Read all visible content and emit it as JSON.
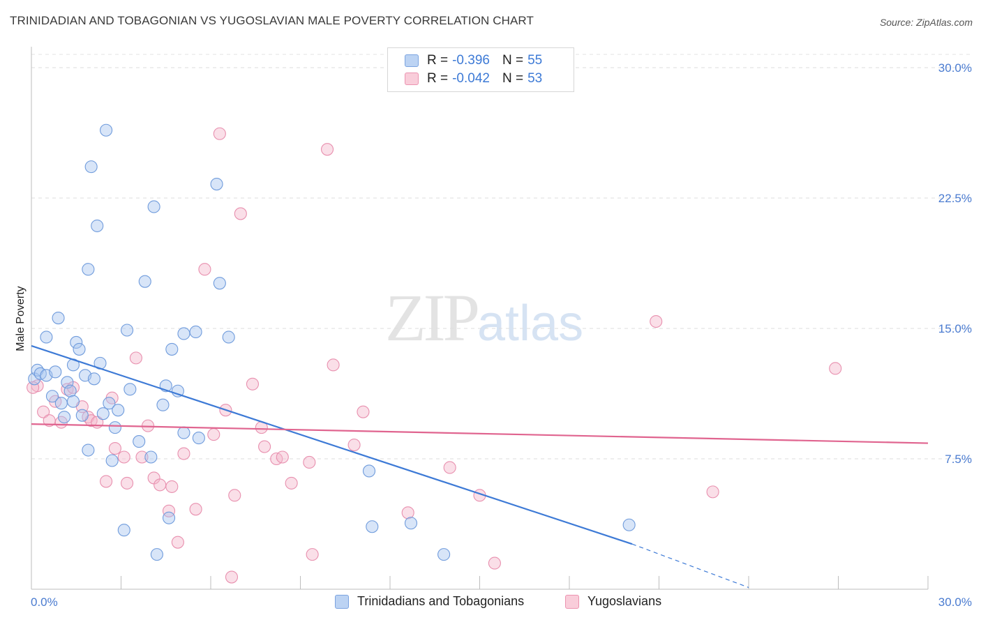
{
  "header": {
    "title": "TRINIDADIAN AND TOBAGONIAN VS YUGOSLAVIAN MALE POVERTY CORRELATION CHART",
    "source": "Source: ZipAtlas.com"
  },
  "watermark": {
    "zip": "ZIP",
    "atlas": "atlas"
  },
  "legend": {
    "rows": [
      {
        "r_label": "R =",
        "r_value": "-0.396",
        "n_label": "N =",
        "n_value": "55",
        "color": "#a8c6ef"
      },
      {
        "r_label": "R =",
        "r_value": "-0.042",
        "n_label": "N =",
        "n_value": "53",
        "color": "#f5b8cc"
      }
    ]
  },
  "bottom_legend": [
    {
      "label": "Trinidadians and Tobagonians",
      "color": "#a8c6ef"
    },
    {
      "label": "Yugoslavians",
      "color": "#f5b8cc"
    }
  ],
  "chart_data": {
    "type": "scatter",
    "title": "TRINIDADIAN AND TOBAGONIAN VS YUGOSLAVIAN MALE POVERTY CORRELATION CHART",
    "xlabel": "",
    "ylabel": "Male Poverty",
    "xlim": [
      0,
      30
    ],
    "ylim": [
      0,
      30
    ],
    "x_tick_labels": [
      "0.0%",
      "30.0%"
    ],
    "y_ticks": [
      7.5,
      15.0,
      22.5,
      30.0
    ],
    "y_tick_labels": [
      "7.5%",
      "15.0%",
      "22.5%",
      "30.0%"
    ],
    "grid": true,
    "colors": {
      "blue": "#3d7ad6",
      "pink": "#e0648f",
      "blue_fill": "#a8c6ef",
      "pink_fill": "#f5b8cc"
    },
    "series": [
      {
        "name": "Trinidadians and Tobagonians",
        "color": "#3d7ad6",
        "trend": {
          "x": [
            0.0,
            20.1
          ],
          "y": [
            14.0,
            2.6
          ],
          "dashed_to": [
            24.0,
            0.1
          ]
        },
        "points": [
          [
            0.1,
            12.1
          ],
          [
            0.2,
            12.6
          ],
          [
            0.3,
            12.4
          ],
          [
            0.5,
            14.5
          ],
          [
            0.5,
            12.3
          ],
          [
            0.7,
            11.1
          ],
          [
            0.8,
            12.5
          ],
          [
            0.9,
            15.6
          ],
          [
            1.0,
            10.7
          ],
          [
            1.1,
            9.9
          ],
          [
            1.2,
            11.9
          ],
          [
            1.3,
            11.4
          ],
          [
            1.4,
            10.8
          ],
          [
            1.4,
            12.9
          ],
          [
            1.5,
            14.2
          ],
          [
            1.6,
            13.8
          ],
          [
            1.7,
            10.0
          ],
          [
            1.8,
            12.3
          ],
          [
            1.9,
            18.4
          ],
          [
            1.9,
            8.0
          ],
          [
            2.0,
            24.3
          ],
          [
            2.1,
            12.1
          ],
          [
            2.2,
            20.9
          ],
          [
            2.3,
            13.0
          ],
          [
            2.4,
            10.1
          ],
          [
            2.5,
            26.4
          ],
          [
            2.6,
            10.7
          ],
          [
            2.7,
            7.4
          ],
          [
            2.8,
            9.3
          ],
          [
            2.9,
            10.3
          ],
          [
            3.1,
            3.4
          ],
          [
            3.2,
            14.9
          ],
          [
            3.3,
            11.5
          ],
          [
            3.6,
            8.5
          ],
          [
            3.8,
            17.7
          ],
          [
            4.0,
            7.6
          ],
          [
            4.1,
            22.0
          ],
          [
            4.2,
            2.0
          ],
          [
            4.4,
            10.6
          ],
          [
            4.5,
            11.7
          ],
          [
            4.6,
            4.1
          ],
          [
            4.7,
            13.8
          ],
          [
            4.9,
            11.4
          ],
          [
            5.1,
            14.7
          ],
          [
            5.1,
            9.0
          ],
          [
            5.5,
            14.8
          ],
          [
            5.6,
            8.7
          ],
          [
            6.2,
            23.3
          ],
          [
            6.3,
            17.6
          ],
          [
            6.6,
            14.5
          ],
          [
            11.4,
            3.6
          ],
          [
            11.3,
            6.8
          ],
          [
            12.7,
            3.8
          ],
          [
            13.8,
            2.0
          ],
          [
            20.0,
            3.7
          ]
        ]
      },
      {
        "name": "Yugoslavians",
        "color": "#e0648f",
        "trend": {
          "x": [
            0.0,
            30.0
          ],
          "y": [
            9.5,
            8.4
          ]
        },
        "points": [
          [
            0.2,
            11.7
          ],
          [
            0.4,
            10.2
          ],
          [
            0.6,
            9.7
          ],
          [
            0.8,
            10.8
          ],
          [
            1.0,
            9.6
          ],
          [
            1.2,
            11.5
          ],
          [
            1.4,
            11.6
          ],
          [
            1.7,
            10.5
          ],
          [
            1.9,
            9.9
          ],
          [
            2.0,
            9.7
          ],
          [
            2.2,
            9.6
          ],
          [
            2.5,
            6.2
          ],
          [
            2.7,
            11.0
          ],
          [
            2.8,
            8.1
          ],
          [
            3.1,
            7.6
          ],
          [
            3.2,
            6.1
          ],
          [
            3.5,
            13.3
          ],
          [
            3.7,
            7.6
          ],
          [
            3.9,
            9.4
          ],
          [
            4.1,
            6.4
          ],
          [
            4.3,
            6.0
          ],
          [
            4.6,
            4.5
          ],
          [
            4.7,
            5.9
          ],
          [
            4.9,
            2.7
          ],
          [
            5.1,
            7.8
          ],
          [
            5.5,
            4.6
          ],
          [
            5.8,
            18.4
          ],
          [
            6.1,
            8.9
          ],
          [
            6.3,
            26.2
          ],
          [
            6.5,
            10.3
          ],
          [
            6.7,
            0.7
          ],
          [
            6.8,
            5.4
          ],
          [
            7.0,
            21.6
          ],
          [
            7.4,
            11.8
          ],
          [
            7.7,
            9.3
          ],
          [
            7.8,
            8.2
          ],
          [
            8.2,
            7.5
          ],
          [
            8.4,
            7.6
          ],
          [
            8.7,
            6.1
          ],
          [
            9.3,
            7.3
          ],
          [
            9.4,
            2.0
          ],
          [
            9.9,
            25.3
          ],
          [
            10.1,
            12.9
          ],
          [
            10.8,
            8.3
          ],
          [
            11.1,
            10.2
          ],
          [
            12.6,
            4.4
          ],
          [
            14.0,
            7.0
          ],
          [
            15.0,
            5.4
          ],
          [
            15.5,
            1.5
          ],
          [
            20.9,
            15.4
          ],
          [
            22.8,
            5.6
          ],
          [
            26.9,
            12.7
          ],
          [
            0.05,
            11.6
          ]
        ]
      }
    ]
  }
}
